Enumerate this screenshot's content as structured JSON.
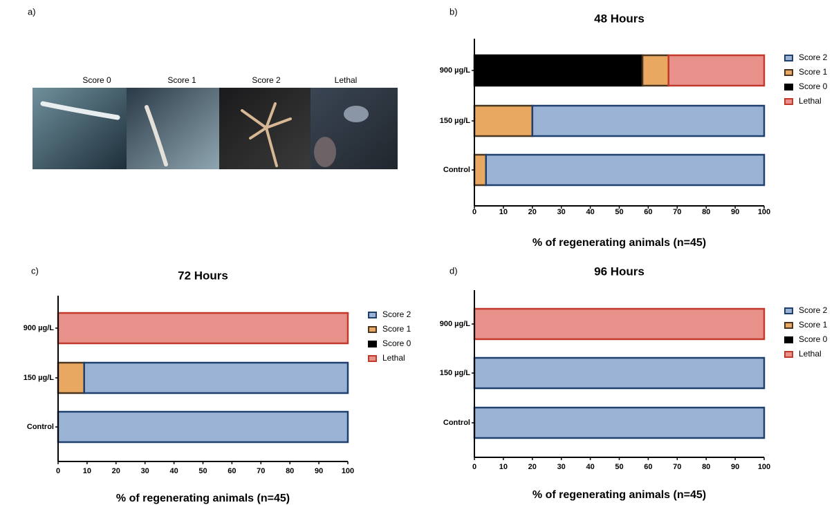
{
  "panel_labels": [
    "a)",
    "b)",
    "c)",
    "d)"
  ],
  "image_panel": {
    "captions": [
      "Score 0",
      "Score 1",
      "Score 2",
      "Lethal"
    ]
  },
  "chart_data": [
    {
      "type": "stacked-barh",
      "title": "48 Hours",
      "x_label": "% of regenerating animals (n=45)",
      "categories": [
        "900 µg/L",
        "150 µg/L",
        "Control"
      ],
      "series": [
        {
          "name": "Score 2",
          "color": "#9ab3d5",
          "edge_color": "#1f3f6e",
          "values": [
            0,
            80,
            96
          ]
        },
        {
          "name": "Score 1",
          "color": "#e8a862",
          "edge_color": "#4a3520",
          "values": [
            9,
            20,
            4
          ]
        },
        {
          "name": "Score 0",
          "color": "#000000",
          "edge_color": "#000000",
          "values": [
            58,
            0,
            0
          ]
        },
        {
          "name": "Lethal",
          "color": "#e8908a",
          "edge_color": "#c0392b",
          "values": [
            33,
            0,
            0
          ]
        }
      ],
      "xlim": [
        0,
        100
      ],
      "xticks": [
        0,
        10,
        20,
        30,
        40,
        50,
        60,
        70,
        80,
        90,
        100
      ]
    },
    {
      "type": "stacked-barh",
      "title": "72 Hours",
      "x_label": "% of regenerating animals (n=45)",
      "categories": [
        "900 µg/L",
        "150 µg/L",
        "Control"
      ],
      "series": [
        {
          "name": "Score 2",
          "color": "#9ab3d5",
          "edge_color": "#1f3f6e",
          "values": [
            0,
            91,
            100
          ]
        },
        {
          "name": "Score 1",
          "color": "#e8a862",
          "edge_color": "#4a3520",
          "values": [
            0,
            9,
            0
          ]
        },
        {
          "name": "Score 0",
          "color": "#000000",
          "edge_color": "#000000",
          "values": [
            0,
            0,
            0
          ]
        },
        {
          "name": "Lethal",
          "color": "#e8908a",
          "edge_color": "#c0392b",
          "values": [
            100,
            0,
            0
          ]
        }
      ],
      "xlim": [
        0,
        100
      ],
      "xticks": [
        0,
        10,
        20,
        30,
        40,
        50,
        60,
        70,
        80,
        90,
        100
      ]
    },
    {
      "type": "stacked-barh",
      "title": "96 Hours",
      "x_label": "% of regenerating animals (n=45)",
      "categories": [
        "900 µg/L",
        "150 µg/L",
        "Control"
      ],
      "series": [
        {
          "name": "Score 2",
          "color": "#9ab3d5",
          "edge_color": "#1f3f6e",
          "values": [
            0,
            100,
            100
          ]
        },
        {
          "name": "Score 1",
          "color": "#e8a862",
          "edge_color": "#4a3520",
          "values": [
            0,
            0,
            0
          ]
        },
        {
          "name": "Score 0",
          "color": "#000000",
          "edge_color": "#000000",
          "values": [
            0,
            0,
            0
          ]
        },
        {
          "name": "Lethal",
          "color": "#e8908a",
          "edge_color": "#c0392b",
          "values": [
            100,
            0,
            0
          ]
        }
      ],
      "xlim": [
        0,
        100
      ],
      "xticks": [
        0,
        10,
        20,
        30,
        40,
        50,
        60,
        70,
        80,
        90,
        100
      ]
    }
  ]
}
